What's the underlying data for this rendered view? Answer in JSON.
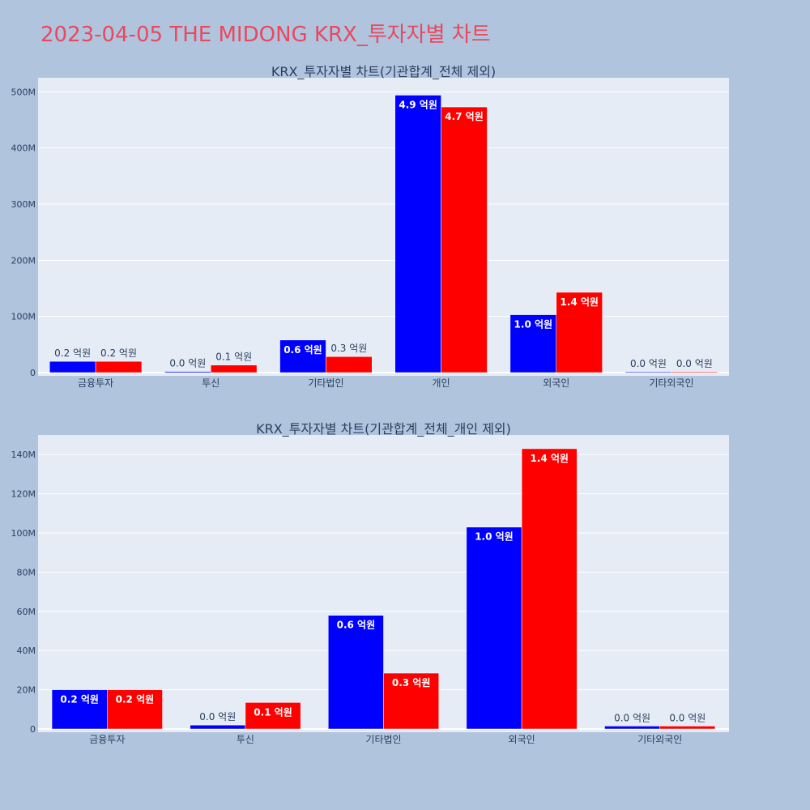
{
  "page": {
    "title": "2023-04-05 THE MIDONG KRX_투자자별 차트"
  },
  "colors": {
    "background": "#b0c4de",
    "plot_bg": "#e5ecf6",
    "buy": "#0000ff",
    "sell": "#ff0000",
    "title": "#e8495f",
    "text": "#2a3f5f",
    "bar_label_inside": "#ffffff"
  },
  "chart_data": [
    {
      "type": "bar",
      "title": "KRX_투자자별 차트(기관합계_전체 제외)",
      "categories": [
        "금융투자",
        "투신",
        "기타법인",
        "개인",
        "외국인",
        "기타외국인"
      ],
      "series": [
        {
          "color": "#0000ff",
          "values": [
            20000000,
            2000000,
            58000000,
            494000000,
            103000000,
            1500000
          ],
          "labels": [
            "0.2 억원",
            "0.0 억원",
            "0.6 억원",
            "4.9 억원",
            "1.0 억원",
            "0.0 억원"
          ]
        },
        {
          "color": "#ff0000",
          "values": [
            20000000,
            13500000,
            28500000,
            473000000,
            143000000,
            1500000
          ],
          "labels": [
            "0.2 억원",
            "0.1 억원",
            "0.3 억원",
            "4.7 억원",
            "1.4 억원",
            "0.0 억원"
          ]
        }
      ],
      "ylim": [
        0,
        525000000
      ],
      "yticks": [
        0,
        100000000,
        200000000,
        300000000,
        400000000,
        500000000
      ],
      "ytick_labels": [
        "0",
        "100M",
        "200M",
        "300M",
        "400M",
        "500M"
      ],
      "grid": true,
      "legend": "none"
    },
    {
      "type": "bar",
      "title": "KRX_투자자별 차트(기관합계_전체_개인 제외)",
      "categories": [
        "금융투자",
        "투신",
        "기타법인",
        "외국인",
        "기타외국인"
      ],
      "series": [
        {
          "color": "#0000ff",
          "values": [
            20000000,
            2000000,
            58000000,
            103000000,
            1500000
          ],
          "labels": [
            "0.2 억원",
            "0.0 억원",
            "0.6 억원",
            "1.0 억원",
            "0.0 억원"
          ]
        },
        {
          "color": "#ff0000",
          "values": [
            20000000,
            13500000,
            28500000,
            143000000,
            1500000
          ],
          "labels": [
            "0.2 억원",
            "0.1 억원",
            "0.3 억원",
            "1.4 억원",
            "0.0 억원"
          ]
        }
      ],
      "ylim": [
        0,
        150000000
      ],
      "yticks": [
        0,
        20000000,
        40000000,
        60000000,
        80000000,
        100000000,
        120000000,
        140000000
      ],
      "ytick_labels": [
        "0",
        "20M",
        "40M",
        "60M",
        "80M",
        "100M",
        "120M",
        "140M"
      ],
      "grid": true,
      "legend": "none"
    }
  ]
}
